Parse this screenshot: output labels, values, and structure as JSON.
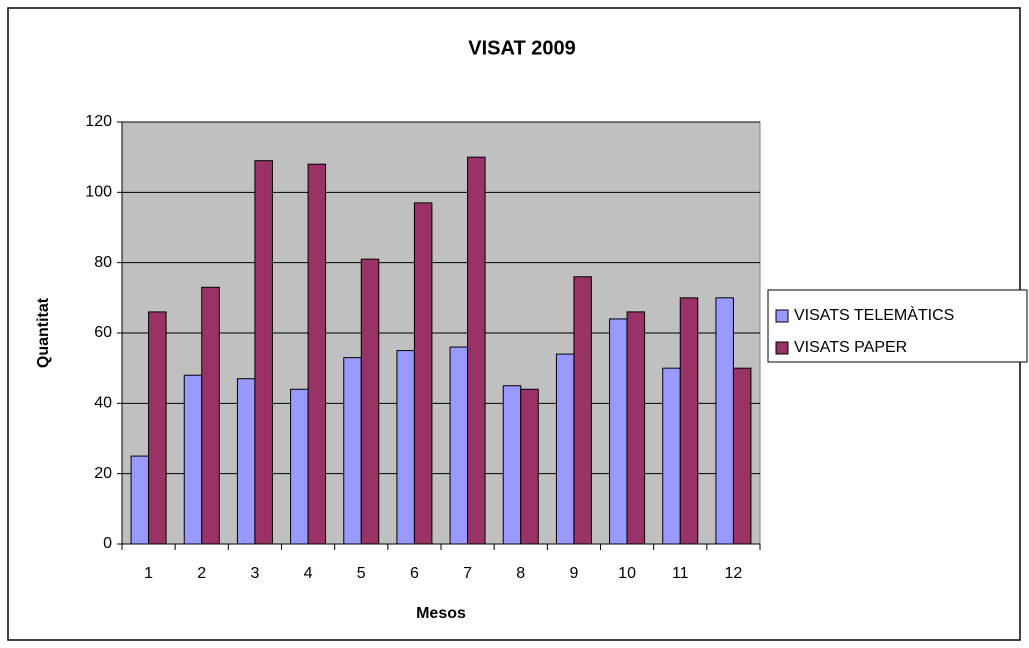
{
  "chart_data": {
    "type": "bar",
    "title": "VISAT 2009",
    "x_label": "Mesos",
    "y_label": "Quantitat",
    "categories": [
      "1",
      "2",
      "3",
      "4",
      "5",
      "6",
      "7",
      "8",
      "9",
      "10",
      "11",
      "12"
    ],
    "series": [
      {
        "name": "VISATS TELEMÀTICS",
        "color": "#9999ff",
        "values": [
          25,
          48,
          47,
          44,
          53,
          55,
          56,
          45,
          54,
          64,
          50,
          70
        ]
      },
      {
        "name": "VISATS PAPER",
        "color": "#993366",
        "values": [
          66,
          73,
          109,
          108,
          81,
          97,
          110,
          44,
          76,
          66,
          70,
          50
        ]
      }
    ],
    "ylim": [
      0,
      120
    ],
    "yticks": [
      0,
      20,
      40,
      60,
      80,
      100,
      120
    ],
    "grid": true,
    "legend": "right"
  }
}
